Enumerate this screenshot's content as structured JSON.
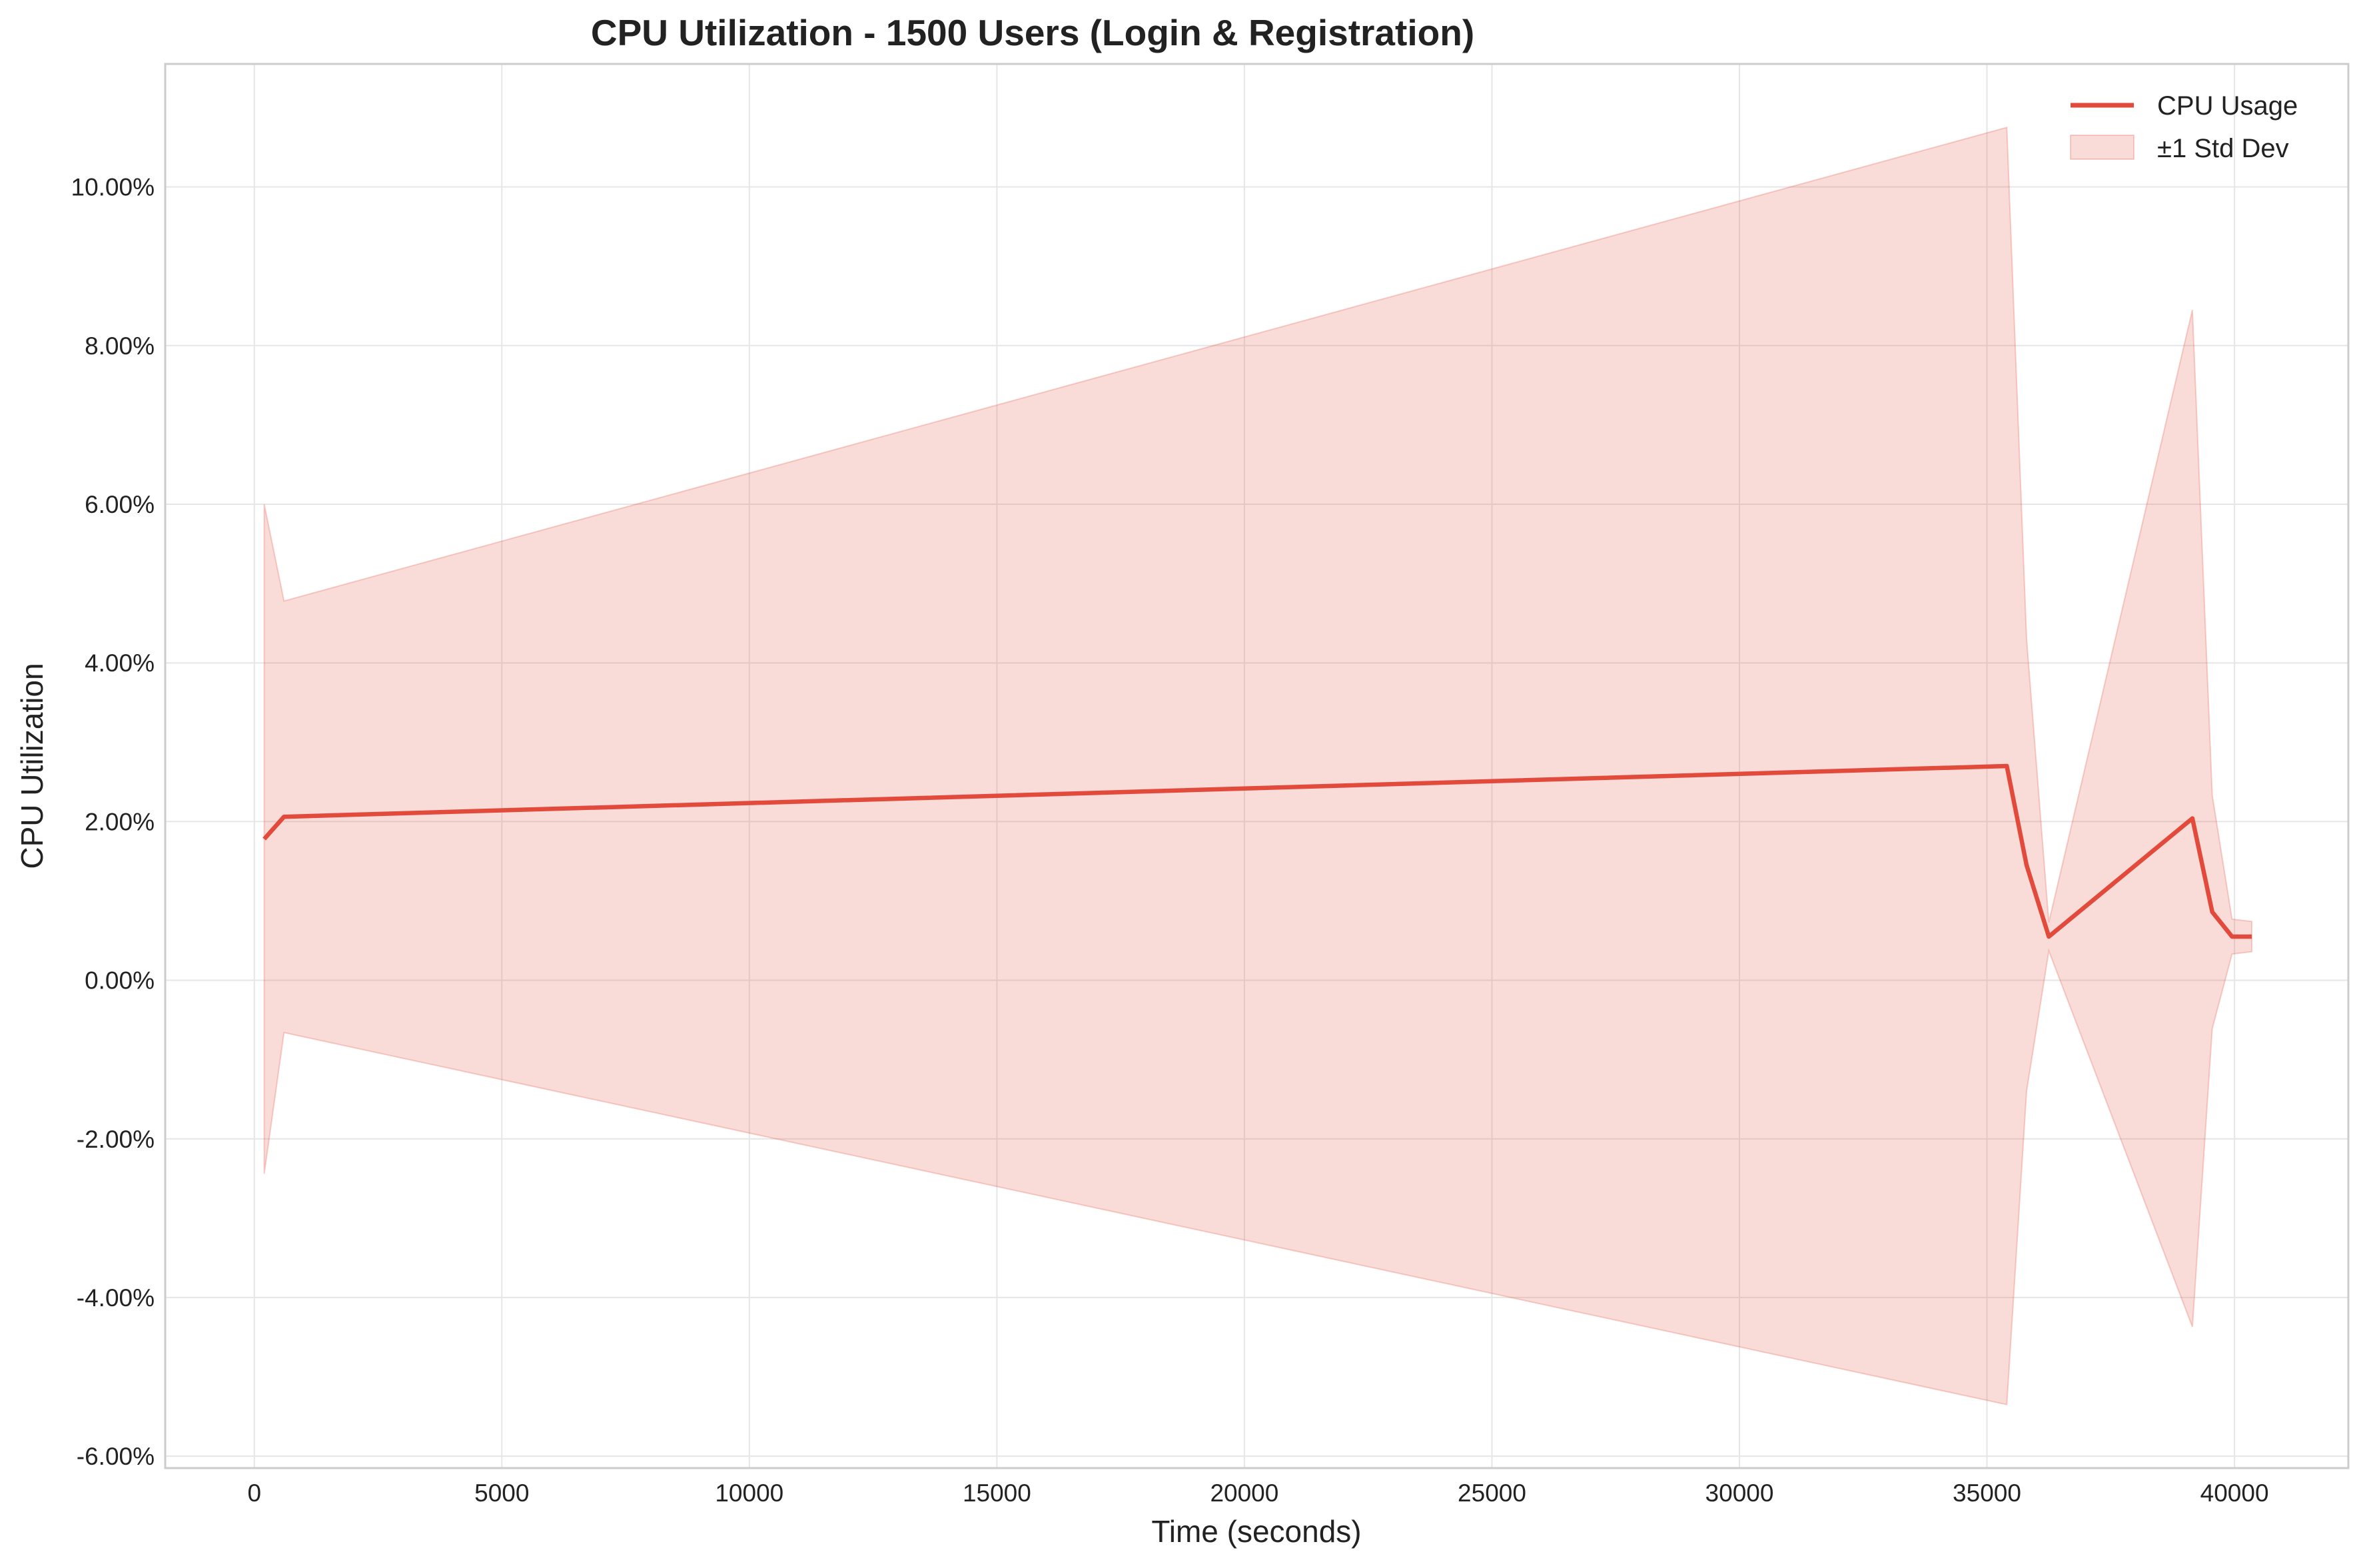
{
  "chart_data": {
    "type": "line",
    "title": "CPU Utilization - 1500 Users (Login & Registration)",
    "xlabel": "Time (seconds)",
    "ylabel": "CPU Utilization",
    "xlim": [
      -1800,
      42300
    ],
    "ylim": [
      -6.15,
      11.55
    ],
    "xticks": [
      0,
      5000,
      10000,
      15000,
      20000,
      25000,
      30000,
      35000,
      40000
    ],
    "xtick_labels": [
      "0",
      "5000",
      "10000",
      "15000",
      "20000",
      "25000",
      "30000",
      "35000",
      "40000"
    ],
    "yticks": [
      -6,
      -4,
      -2,
      0,
      2,
      4,
      6,
      8,
      10
    ],
    "ytick_labels": [
      "-6.00%",
      "-4.00%",
      "-2.00%",
      "0.00%",
      "2.00%",
      "4.00%",
      "6.00%",
      "8.00%",
      "10.00%"
    ],
    "grid": true,
    "legend_position": "top-right",
    "series": [
      {
        "name": "CPU Usage",
        "kind": "line",
        "color": "#e24a3b",
        "x": [
          200,
          600,
          35400,
          35800,
          36250,
          39150,
          39550,
          39950,
          40350
        ],
        "y": [
          1.78,
          2.06,
          2.7,
          1.45,
          0.55,
          2.04,
          0.86,
          0.55,
          0.55
        ]
      },
      {
        "name": "±1 Std Dev",
        "kind": "band",
        "color": "#e24a3b",
        "opacity": 0.2,
        "x": [
          200,
          600,
          35400,
          35800,
          36250,
          39150,
          39550,
          39950,
          40350
        ],
        "upper": [
          6.0,
          4.78,
          10.75,
          4.3,
          0.73,
          8.45,
          2.33,
          0.77,
          0.74
        ],
        "lower": [
          -2.44,
          -0.66,
          -5.35,
          -1.4,
          0.37,
          -4.37,
          -0.61,
          0.33,
          0.36
        ]
      }
    ]
  }
}
